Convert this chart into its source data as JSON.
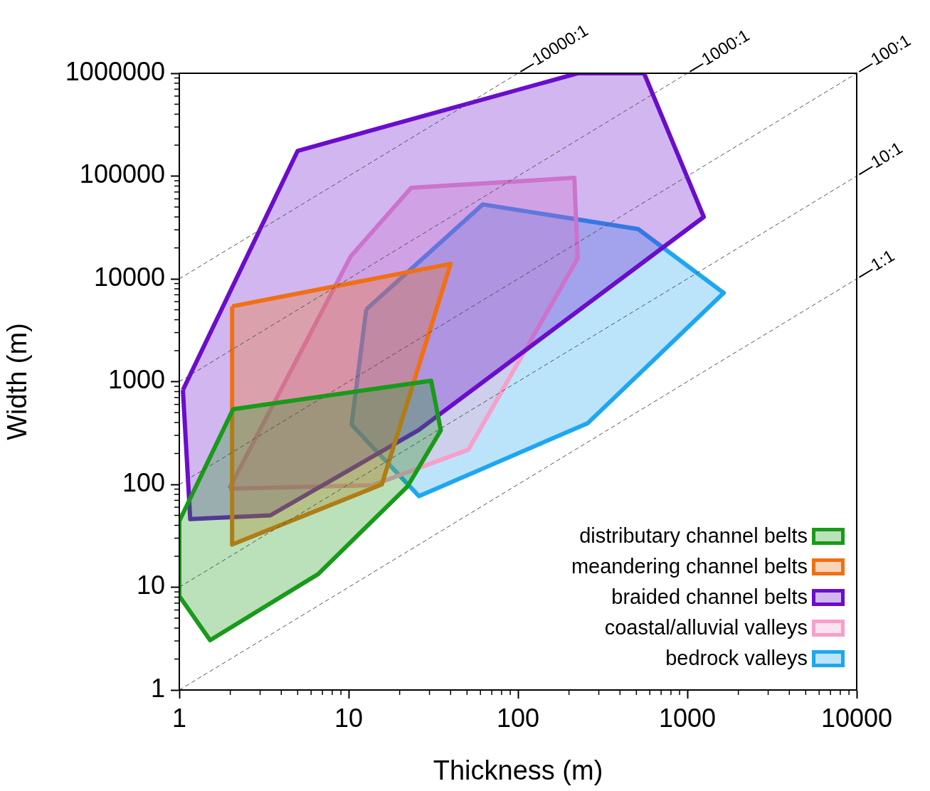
{
  "chart_data": {
    "type": "area",
    "xlabel": "Thickness (m)",
    "ylabel": "Width (m)",
    "log": "xy",
    "grid": false,
    "legend": "bottom right",
    "xlim": [
      1,
      10000
    ],
    "xticks": [
      1,
      10,
      100,
      1000,
      10000
    ],
    "ylim": [
      1,
      1000000
    ],
    "yticks": [
      1,
      10,
      100,
      1000,
      10000,
      100000,
      1000000
    ],
    "series": [
      {
        "name": "distributary channel belts",
        "color": "#1a9a1a",
        "x": [
          1.0,
          2.08,
          30.7,
          35,
          22.3,
          6.6,
          1.52,
          1.0
        ],
        "values": [
          44,
          540,
          1020,
          336,
          96,
          13.4,
          3.05,
          8.2
        ]
      },
      {
        "name": "meandering channel belts",
        "color": "#f07014",
        "x": [
          2.05,
          40,
          15.7,
          2.05
        ],
        "values": [
          5400,
          14000,
          100,
          26
        ]
      },
      {
        "name": "braided channel belts",
        "color": "#6a0dcc",
        "x": [
          1.05,
          5.0,
          225,
          555,
          1250,
          25.8,
          3.45,
          1.16
        ],
        "values": [
          830,
          176000,
          1000000,
          1000000,
          40000,
          336,
          50,
          46
        ]
      },
      {
        "name": "coastal/alluvial valleys",
        "color": "#f79fcb",
        "x": [
          1.97,
          10.3,
          23.4,
          215,
          225,
          51,
          13.8
        ],
        "values": [
          91,
          16600,
          77000,
          96000,
          15800,
          218,
          98
        ]
      },
      {
        "name": "bedrock valleys",
        "color": "#1ea7f0",
        "x": [
          12.7,
          62,
          512,
          1640,
          258,
          26,
          10.4
        ],
        "values": [
          5040,
          53000,
          30500,
          7300,
          394,
          77,
          381
        ]
      },
      {
        "type": "line",
        "name": "1:1",
        "color": "#555555",
        "line_style": "dashed",
        "x": [
          1,
          10000
        ],
        "values": [
          1,
          10000
        ]
      },
      {
        "type": "line",
        "name": "10:1",
        "color": "#555555",
        "line_style": "dashed",
        "x": [
          1,
          10000
        ],
        "values": [
          10,
          100000
        ]
      },
      {
        "type": "line",
        "name": "100:1",
        "color": "#555555",
        "line_style": "dashed",
        "x": [
          1,
          10000
        ],
        "values": [
          100,
          1000000
        ]
      },
      {
        "type": "line",
        "name": "1000:1",
        "color": "#555555",
        "line_style": "dashed",
        "x": [
          1,
          1000
        ],
        "values": [
          1000,
          1000000
        ]
      },
      {
        "type": "line",
        "name": "10000:1",
        "color": "#555555",
        "line_style": "dashed",
        "x": [
          1,
          100
        ],
        "values": [
          10000,
          1000000
        ]
      }
    ]
  }
}
